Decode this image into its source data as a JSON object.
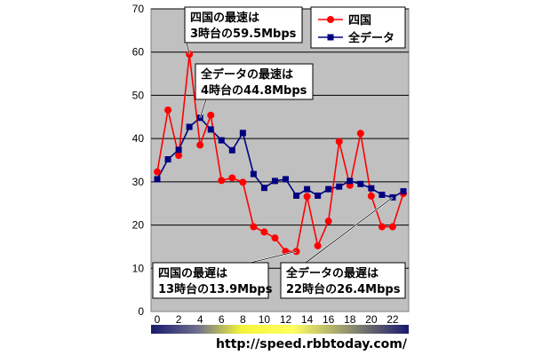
{
  "chart_data": {
    "type": "line",
    "x": [
      0,
      1,
      2,
      3,
      4,
      5,
      6,
      7,
      8,
      9,
      10,
      11,
      12,
      13,
      14,
      15,
      16,
      17,
      18,
      19,
      20,
      21,
      22,
      23
    ],
    "xticks": [
      "0",
      "2",
      "4",
      "6",
      "8",
      "10",
      "12",
      "14",
      "16",
      "18",
      "20",
      "22"
    ],
    "yticks": [
      "0",
      "10",
      "20",
      "30",
      "40",
      "50",
      "60",
      "70"
    ],
    "ylim": [
      0,
      70
    ],
    "grid": true,
    "legend_position": "top-right",
    "series": [
      {
        "name": "四国",
        "color": "#ff0000",
        "marker": "circle",
        "values": [
          32.3,
          46.6,
          36.1,
          59.5,
          38.5,
          45.4,
          30.3,
          30.9,
          29.9,
          19.6,
          18.4,
          17.0,
          13.9,
          13.9,
          26.6,
          15.2,
          20.9,
          39.3,
          29.2,
          41.2,
          26.7,
          19.6,
          19.6,
          27.3
        ]
      },
      {
        "name": "全データ",
        "color": "#000080",
        "marker": "square",
        "values": [
          30.6,
          35.2,
          37.4,
          42.7,
          44.8,
          42.1,
          39.6,
          37.3,
          41.3,
          31.8,
          28.6,
          30.2,
          30.6,
          26.8,
          28.3,
          26.8,
          28.3,
          28.9,
          30.2,
          29.5,
          28.5,
          27.0,
          26.4,
          27.8
        ]
      }
    ],
    "annotations": [
      {
        "id": "shikoku-max",
        "line1": "四国の最速は",
        "line2": "3時台の59.5Mbps",
        "target_x": 3,
        "target_y": 59.5
      },
      {
        "id": "all-max",
        "line1": "全データの最速は",
        "line2": "4時台の44.8Mbps",
        "target_x": 4,
        "target_y": 44.8
      },
      {
        "id": "shikoku-min",
        "line1": "四国の最遅は",
        "line2": "13時台の13.9Mbps",
        "target_x": 13,
        "target_y": 13.9
      },
      {
        "id": "all-min",
        "line1": "全データの最遅は",
        "line2": "22時台の26.4Mbps",
        "target_x": 22,
        "target_y": 26.4
      }
    ],
    "footer_url": "http://speed.rbbtoday.com/",
    "colors": {
      "plot_bg": "#c0c0c0",
      "grid": "#000000"
    }
  }
}
